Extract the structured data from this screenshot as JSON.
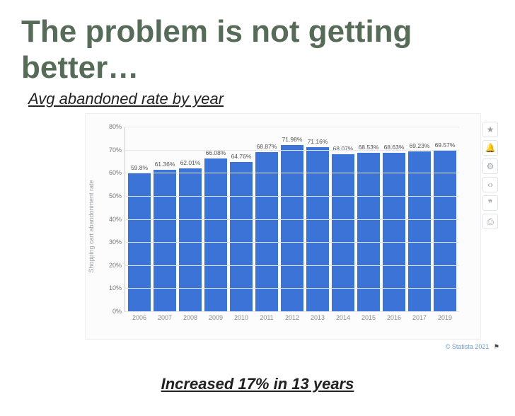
{
  "title": {
    "text": "The problem is not getting better…",
    "color": "#566b58"
  },
  "subtitle": "Avg abandoned rate by year",
  "caption": "Increased 17% in 13 years",
  "attribution": "© Statista 2021",
  "chart": {
    "type": "bar",
    "y_axis_label": "Shopping cart abandonment rate",
    "ylim_max": 80,
    "ylim_min": 0,
    "ytick_step": 10,
    "y_tick_suffix": "%",
    "bar_color": "#3b73d6",
    "grid_color": "#e4e7ec",
    "background": "#fcfcfc",
    "label_fontsize": 9,
    "series": [
      {
        "year": "2006",
        "value": 59.8,
        "label": "59.8%"
      },
      {
        "year": "2007",
        "value": 61.36,
        "label": "61.36%"
      },
      {
        "year": "2008",
        "value": 62.01,
        "label": "62.01%"
      },
      {
        "year": "2009",
        "value": 66.08,
        "label": "66.08%"
      },
      {
        "year": "2010",
        "value": 64.76,
        "label": "64.76%"
      },
      {
        "year": "2011",
        "value": 68.87,
        "label": "68.87%"
      },
      {
        "year": "2012",
        "value": 71.98,
        "label": "71.98%"
      },
      {
        "year": "2013",
        "value": 71.16,
        "label": "71.16%"
      },
      {
        "year": "2014",
        "value": 68.07,
        "label": "68.07%"
      },
      {
        "year": "2015",
        "value": 68.53,
        "label": "68.53%"
      },
      {
        "year": "2016",
        "value": 68.63,
        "label": "68.63%"
      },
      {
        "year": "2017",
        "value": 69.23,
        "label": "69.23%"
      },
      {
        "year": "2019",
        "value": 69.57,
        "label": "69.57%"
      }
    ]
  },
  "toolbar": [
    {
      "name": "star-icon",
      "glyph": "★"
    },
    {
      "name": "bell-icon",
      "glyph": "🔔"
    },
    {
      "name": "gear-icon",
      "glyph": "⚙"
    },
    {
      "name": "share-icon",
      "glyph": "‹›"
    },
    {
      "name": "quote-icon",
      "glyph": "❞"
    },
    {
      "name": "print-icon",
      "glyph": "⎙"
    }
  ]
}
